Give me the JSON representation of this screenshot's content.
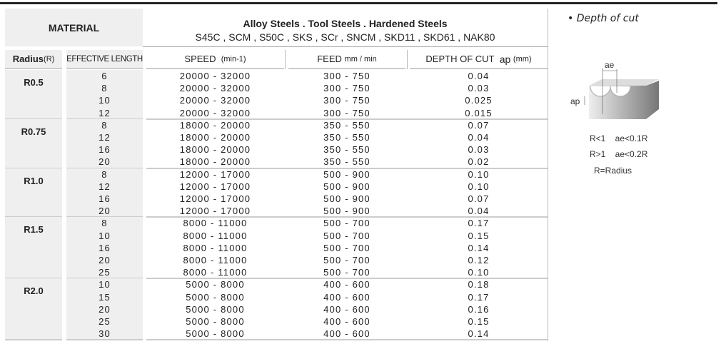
{
  "header": {
    "material_label": "MATERIAL",
    "steels_title": "Alloy  Steels . Tool Steels . Hardened Steels",
    "steels_grades": "S45C , SCM , S50C , SKS , SCr , SNCM , SKD11 , SKD61 , NAK80"
  },
  "columns": {
    "radius": "Radius",
    "radius_unit": "(R)",
    "length": "EFFECTIVE LENGTH",
    "speed": "SPEED",
    "speed_unit": "(min-1)",
    "feed": "FEED",
    "feed_unit": "mm / min",
    "depth": "DEPTH OF CUT",
    "depth_sym": "ap",
    "depth_unit": "(mm)"
  },
  "groups": [
    {
      "radius": "R0.5",
      "rows": [
        [
          "6",
          "20000 - 32000",
          "300 - 750",
          "0.04"
        ],
        [
          "8",
          "20000 - 32000",
          "300 - 750",
          "0.03"
        ],
        [
          "10",
          "20000 - 32000",
          "300 - 750",
          "0.025"
        ],
        [
          "12",
          "20000 - 32000",
          "300 - 750",
          "0.015"
        ]
      ]
    },
    {
      "radius": "R0.75",
      "rows": [
        [
          "8",
          "18000 - 20000",
          "350 - 550",
          "0.07"
        ],
        [
          "12",
          "18000 - 20000",
          "350 - 550",
          "0.04"
        ],
        [
          "16",
          "18000 - 20000",
          "350 - 550",
          "0.03"
        ],
        [
          "20",
          "18000 - 20000",
          "350 - 550",
          "0.02"
        ]
      ]
    },
    {
      "radius": "R1.0",
      "rows": [
        [
          "8",
          "12000 - 17000",
          "500 - 900",
          "0.10"
        ],
        [
          "12",
          "12000 - 17000",
          "500 - 900",
          "0.10"
        ],
        [
          "16",
          "12000 - 17000",
          "500 - 900",
          "0.07"
        ],
        [
          "20",
          "12000 - 17000",
          "500 - 900",
          "0.04"
        ]
      ]
    },
    {
      "radius": "R1.5",
      "rows": [
        [
          "8",
          "8000 - 11000",
          "500 - 700",
          "0.17"
        ],
        [
          "10",
          "8000 - 11000",
          "500 - 700",
          "0.15"
        ],
        [
          "16",
          "8000 - 11000",
          "500 - 700",
          "0.14"
        ],
        [
          "20",
          "8000 - 11000",
          "500 - 700",
          "0.12"
        ],
        [
          "25",
          "8000 - 11000",
          "500 - 700",
          "0.10"
        ]
      ]
    },
    {
      "radius": "R2.0",
      "rows": [
        [
          "10",
          "5000 - 8000",
          "400 - 600",
          "0.18"
        ],
        [
          "15",
          "5000 - 8000",
          "400 - 600",
          "0.17"
        ],
        [
          "20",
          "5000 - 8000",
          "400 - 600",
          "0.16"
        ],
        [
          "25",
          "5000 - 8000",
          "400 - 600",
          "0.15"
        ],
        [
          "30",
          "5000 - 8000",
          "400 - 600",
          "0.14"
        ]
      ]
    }
  ],
  "sidebar": {
    "title": "•  Depth of cut",
    "ae": "ae",
    "ap": "ap",
    "rule1": "R<1    ae<0.1R",
    "rule2": "R>1    ae<0.2R",
    "rule3": "R=Radius"
  }
}
